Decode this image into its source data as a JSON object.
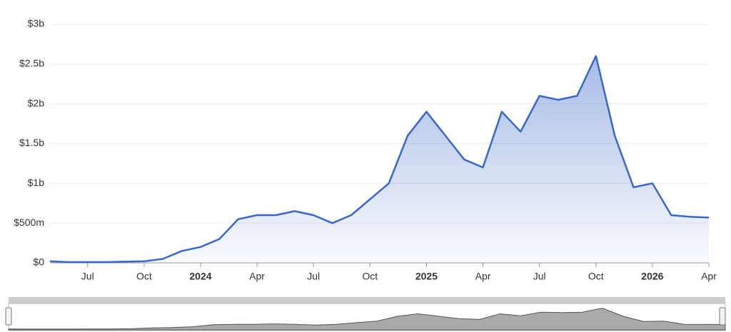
{
  "chart_data": {
    "type": "area",
    "x": [
      "2023-05",
      "2023-06",
      "2023-07",
      "2023-08",
      "2023-09",
      "2023-10",
      "2023-11",
      "2023-12",
      "2024-01",
      "2024-02",
      "2024-03",
      "2024-04",
      "2024-05",
      "2024-06",
      "2024-07",
      "2024-08",
      "2024-09",
      "2024-10",
      "2024-11",
      "2024-12",
      "2025-01",
      "2025-02",
      "2025-03",
      "2025-04",
      "2025-05",
      "2025-06",
      "2025-07",
      "2025-08",
      "2025-09",
      "2025-10",
      "2025-11",
      "2025-12",
      "2026-01",
      "2026-02",
      "2026-03",
      "2026-04"
    ],
    "values": [
      0.02,
      0.01,
      0.01,
      0.01,
      0.015,
      0.02,
      0.05,
      0.15,
      0.2,
      0.3,
      0.55,
      0.6,
      0.6,
      0.65,
      0.6,
      0.5,
      0.6,
      0.8,
      1.0,
      1.6,
      1.9,
      1.6,
      1.3,
      1.2,
      1.9,
      1.65,
      2.1,
      2.05,
      2.1,
      2.6,
      1.6,
      0.95,
      1.0,
      0.6,
      0.58,
      0.57
    ],
    "color": "#3a68c8",
    "xlim": [
      "2023-05",
      "2026-04"
    ],
    "xticks": [
      {
        "value": "2023-07",
        "label": "Jul"
      },
      {
        "value": "2023-10",
        "label": "Oct"
      },
      {
        "value": "2024-01",
        "label": "2024"
      },
      {
        "value": "2024-04",
        "label": "Apr"
      },
      {
        "value": "2024-07",
        "label": "Jul"
      },
      {
        "value": "2024-10",
        "label": "Oct"
      },
      {
        "value": "2025-01",
        "label": "2025"
      },
      {
        "value": "2025-04",
        "label": "Apr"
      },
      {
        "value": "2025-07",
        "label": "Jul"
      },
      {
        "value": "2025-10",
        "label": "Oct"
      },
      {
        "value": "2026-01",
        "label": "2026"
      },
      {
        "value": "2026-04",
        "label": "Apr"
      }
    ],
    "ylim": [
      0,
      3
    ],
    "yticks": [
      {
        "value": 0,
        "label": "$0"
      },
      {
        "value": 0.5,
        "label": "$500m"
      },
      {
        "value": 1,
        "label": "$1b"
      },
      {
        "value": 1.5,
        "label": "$1.5b"
      },
      {
        "value": 2,
        "label": "$2b"
      },
      {
        "value": 2.5,
        "label": "$2.5b"
      },
      {
        "value": 3,
        "label": "$3b"
      }
    ],
    "grid": true
  }
}
